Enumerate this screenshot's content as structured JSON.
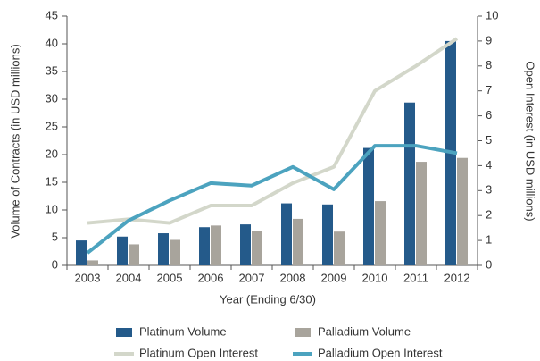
{
  "chart_data": {
    "type": "bar",
    "x_label": "Year (Ending 6/30)",
    "y_label": "Volume of Contracts (in USD millions)",
    "y2_label": "Open Interest (in USD millions)",
    "categories": [
      "2003",
      "2004",
      "2005",
      "2006",
      "2007",
      "2008",
      "2009",
      "2010",
      "2011",
      "2012"
    ],
    "series": [
      {
        "name": "Platinum Volume",
        "type": "bar",
        "color": "#245a8a",
        "values": [
          4.5,
          5.2,
          5.8,
          6.9,
          7.4,
          11.2,
          11.0,
          21.2,
          29.4,
          40.5
        ]
      },
      {
        "name": "Palladium Volume",
        "type": "bar",
        "color": "#a8a49c",
        "values": [
          0.9,
          3.8,
          4.6,
          7.2,
          6.2,
          8.4,
          6.1,
          11.6,
          18.7,
          19.4
        ]
      },
      {
        "name": "Platinum Open Interest",
        "type": "line",
        "axis": "y2",
        "color": "#d3d7ca",
        "values": [
          1.7,
          1.85,
          1.7,
          2.4,
          2.4,
          3.3,
          3.95,
          7.0,
          8.0,
          9.1
        ]
      },
      {
        "name": "Palladium Open Interest",
        "type": "line",
        "axis": "y2",
        "color": "#4ca3bf",
        "values": [
          0.5,
          1.8,
          2.6,
          3.3,
          3.2,
          3.95,
          3.05,
          4.8,
          4.8,
          4.5
        ]
      }
    ],
    "ylim": [
      0,
      45
    ],
    "yticks": [
      0,
      5,
      10,
      15,
      20,
      25,
      30,
      35,
      40,
      45
    ],
    "y2lim": [
      0,
      10
    ],
    "y2ticks": [
      0,
      1,
      2,
      3,
      4,
      5,
      6,
      7,
      8,
      9,
      10
    ]
  }
}
